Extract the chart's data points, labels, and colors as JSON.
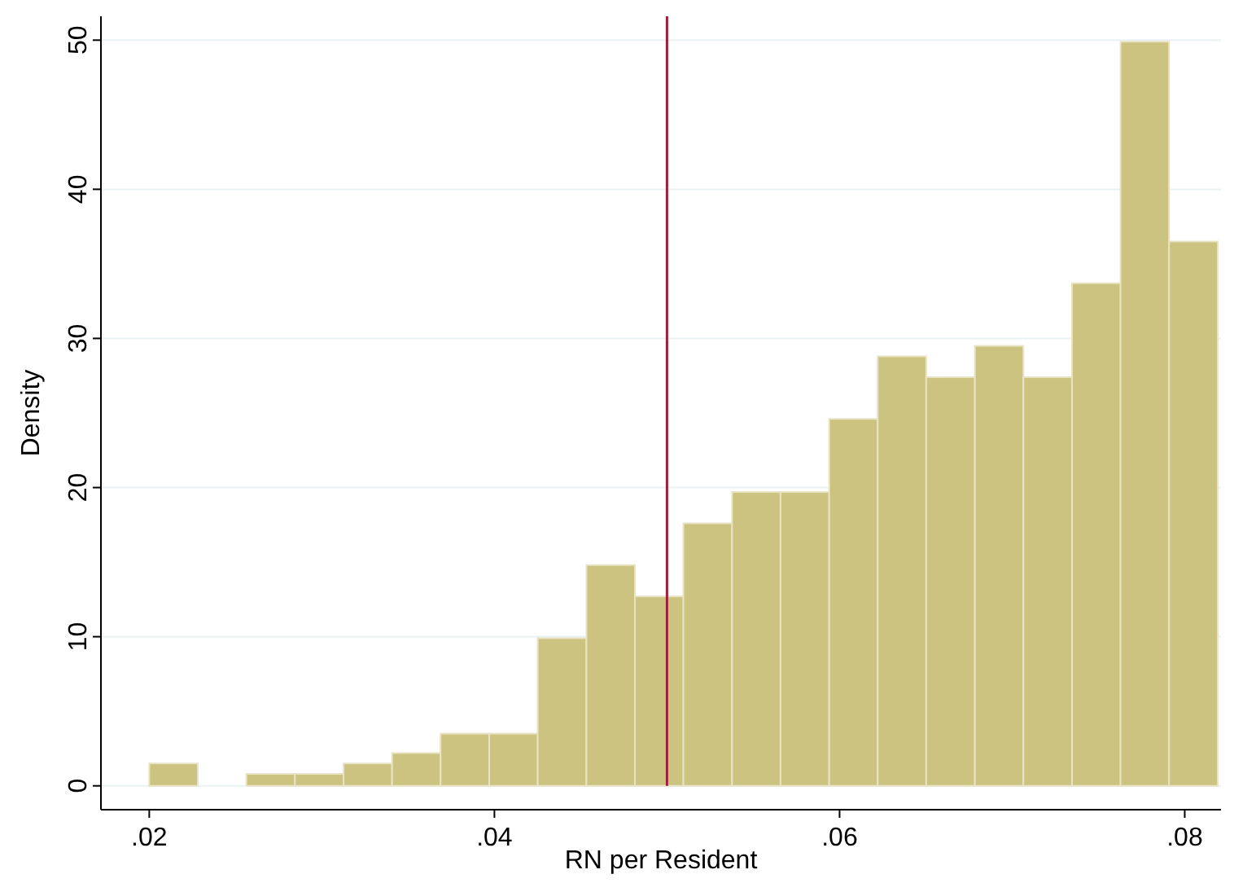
{
  "chart_data": {
    "type": "histogram",
    "xlabel": "RN per Resident",
    "ylabel": "Density",
    "bins": [
      0.02,
      0.02281,
      0.02563,
      0.02844,
      0.03126,
      0.03407,
      0.03688,
      0.0397,
      0.04251,
      0.04533,
      0.04814,
      0.05095,
      0.05377,
      0.05658,
      0.0594,
      0.06221,
      0.06502,
      0.06784,
      0.07065,
      0.07347,
      0.07628,
      0.07909,
      0.08191
    ],
    "values": [
      1.5,
      0,
      0.8,
      0.8,
      1.5,
      2.2,
      3.5,
      3.5,
      9.9,
      14.8,
      12.7,
      17.6,
      19.7,
      19.7,
      24.6,
      28.8,
      27.4,
      29.5,
      27.4,
      33.7,
      49.9,
      36.5
    ],
    "color": "#ccc380",
    "xlim": [
      0.0172,
      0.0821
    ],
    "xticks": [
      {
        "value": 0.02,
        "label": ".02"
      },
      {
        "value": 0.04,
        "label": ".04"
      },
      {
        "value": 0.06,
        "label": ".06"
      },
      {
        "value": 0.08,
        "label": ".08"
      }
    ],
    "ylim": [
      -1.6,
      51.6
    ],
    "yticks": [
      0,
      10,
      20,
      30,
      40,
      50
    ],
    "grid": "y",
    "ref_lines": [
      {
        "axis": "x",
        "value": 0.05,
        "color": "#a0203c"
      }
    ]
  }
}
